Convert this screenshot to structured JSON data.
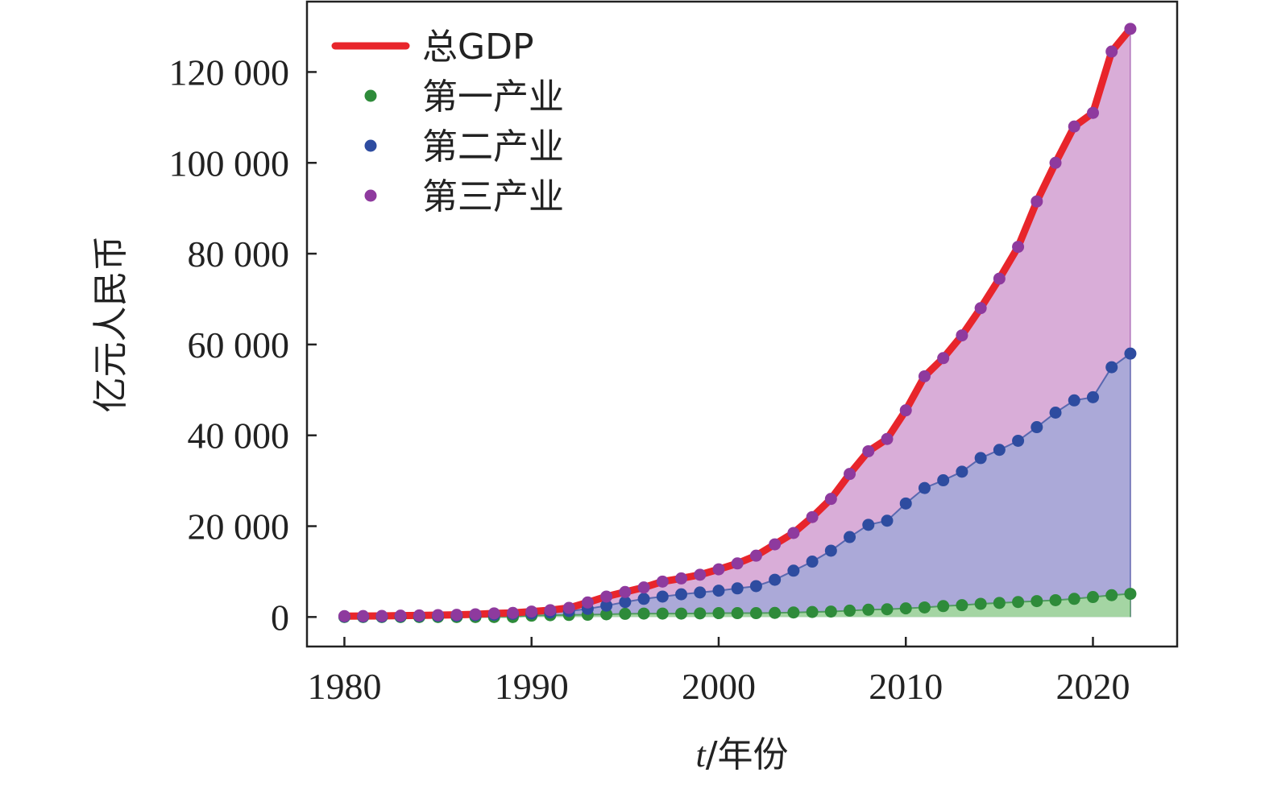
{
  "chart_data": {
    "type": "area",
    "xlabel_italic": "t",
    "xlabel_rest": "/年份",
    "ylabel": "亿元人民币",
    "xlim": [
      1978,
      2024.5
    ],
    "ylim": [
      -6500,
      135500
    ],
    "xticks": [
      1980,
      1990,
      2000,
      2010,
      2020
    ],
    "yticks": [
      0,
      20000,
      40000,
      60000,
      80000,
      100000,
      120000
    ],
    "ytick_labels": [
      "0",
      "20 000",
      "40 000",
      "60 000",
      "80 000",
      "100 000",
      "120 000"
    ],
    "grid": false,
    "legend_position": "top-left",
    "x": [
      1980,
      1981,
      1982,
      1983,
      1984,
      1985,
      1986,
      1987,
      1988,
      1989,
      1990,
      1991,
      1992,
      1993,
      1994,
      1995,
      1996,
      1997,
      1998,
      1999,
      2000,
      2001,
      2002,
      2003,
      2004,
      2005,
      2006,
      2007,
      2008,
      2009,
      2010,
      2011,
      2012,
      2013,
      2014,
      2015,
      2016,
      2017,
      2018,
      2019,
      2020,
      2021,
      2022
    ],
    "series": [
      {
        "name": "总GDP",
        "style": "line",
        "color": "#e8252b",
        "values": [
          200,
          210,
          230,
          300,
          350,
          420,
          480,
          600,
          800,
          900,
          1200,
          1500,
          2000,
          3200,
          4500,
          5500,
          6500,
          7800,
          8500,
          9300,
          10500,
          11800,
          13500,
          16000,
          18500,
          22000,
          26000,
          31500,
          36500,
          39200,
          45500,
          53000,
          57000,
          62000,
          68000,
          74500,
          81500,
          91500,
          100000,
          108000,
          111000,
          124500,
          129500
        ]
      },
      {
        "name": "第一产业",
        "style": "markers",
        "color": "#2e8b3a",
        "fill": "#a3d7a0",
        "values": [
          0,
          0,
          0,
          0,
          0,
          0,
          0,
          0,
          0,
          0,
          300,
          400,
          450,
          500,
          600,
          700,
          750,
          750,
          750,
          800,
          850,
          850,
          850,
          900,
          1000,
          1100,
          1200,
          1400,
          1600,
          1700,
          1900,
          2100,
          2400,
          2600,
          2900,
          3100,
          3300,
          3500,
          3700,
          4000,
          4400,
          4800,
          5100
        ]
      },
      {
        "name": "第二产业",
        "style": "markers",
        "color": "#2e4ca0",
        "fill": "#a9a9d8",
        "values": [
          100,
          100,
          100,
          150,
          200,
          250,
          300,
          400,
          500,
          700,
          800,
          1000,
          1300,
          1800,
          2500,
          3300,
          4000,
          4500,
          5000,
          5400,
          5800,
          6300,
          6800,
          8200,
          10200,
          12200,
          14600,
          17600,
          20300,
          21200,
          25000,
          28400,
          30100,
          32000,
          35000,
          36800,
          38800,
          41800,
          45000,
          47700,
          48400,
          55000,
          58000
        ]
      },
      {
        "name": "第三产业",
        "style": "markers",
        "color": "#8e3a9e",
        "fill": "#d7a9d6",
        "values": [
          200,
          210,
          230,
          300,
          350,
          420,
          480,
          600,
          800,
          900,
          1200,
          1500,
          2000,
          3200,
          4500,
          5500,
          6500,
          7800,
          8500,
          9300,
          10500,
          11800,
          13500,
          16000,
          18500,
          22000,
          26000,
          31500,
          36500,
          39200,
          45500,
          53000,
          57000,
          62000,
          68000,
          74500,
          81500,
          91500,
          100000,
          108000,
          111000,
          124500,
          129500
        ]
      }
    ]
  }
}
